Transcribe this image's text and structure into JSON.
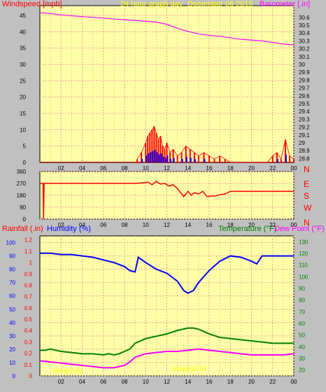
{
  "header": {
    "title": "24 hour graph day",
    "date": "December 06 2015",
    "left_label": "Windspeed [mph]",
    "right_label": "Barometer [.in]"
  },
  "colors": {
    "background": "#c0c0c0",
    "plot_bg": "#ffffa8",
    "grid": "#f0a0a0",
    "wind": "#ff0000",
    "gust_fill": "#0000ff",
    "green_fill": "#008000",
    "barometer": "#ff00ff",
    "direction": "#ff0000",
    "humidity": "#0000ff",
    "temperature": "#008000",
    "dew_point": "#ff00ff",
    "rain_axis": "#ff0000",
    "yellow_text": "#ffff00"
  },
  "chart_data": [
    {
      "type": "line",
      "id": "wind_barometer",
      "title": "24 hour graph day   December 06 2015",
      "ylabel_left": "Windspeed [mph]",
      "ylabel_right": "Barometer [.in]",
      "x_ticks": [
        "02",
        "04",
        "06",
        "08",
        "10",
        "12",
        "14",
        "16",
        "18",
        "20",
        "22",
        "00"
      ],
      "y_left_ticks": [
        "0",
        "5",
        "10",
        "15",
        "20",
        "25",
        "30",
        "35",
        "40",
        "45"
      ],
      "y_right_ticks": [
        "28.8",
        "28.9",
        "29",
        "29.1",
        "29.2",
        "29.3",
        "29.4",
        "29.5",
        "29.6",
        "29.7",
        "29.8",
        "29.9",
        "30",
        "30.1",
        "30.2",
        "30.3",
        "30.4",
        "30.5",
        "30.6"
      ],
      "xlim": [
        0,
        24
      ],
      "ylim_left": [
        0,
        48
      ],
      "ylim_right": [
        28.75,
        30.75
      ],
      "grid": true,
      "series": [
        {
          "name": "Barometer",
          "axis": "right",
          "x": [
            0,
            1,
            2,
            3,
            4,
            5,
            6,
            7,
            8,
            9,
            10,
            11,
            12,
            13,
            14,
            15,
            16,
            17,
            18,
            19,
            20,
            21,
            22,
            23,
            24
          ],
          "y": [
            30.66,
            30.65,
            30.63,
            30.62,
            30.61,
            30.6,
            30.59,
            30.58,
            30.57,
            30.56,
            30.55,
            30.54,
            30.51,
            30.46,
            30.42,
            30.39,
            30.37,
            30.36,
            30.34,
            30.32,
            30.31,
            30.3,
            30.28,
            30.26,
            30.25
          ]
        },
        {
          "name": "Wind",
          "axis": "left",
          "x": [
            9.2,
            9.6,
            10.0,
            10.2,
            10.4,
            10.6,
            10.8,
            11.0,
            11.2,
            11.4,
            11.6,
            11.8,
            12.0,
            12.3,
            12.6,
            13.0,
            13.4,
            13.8,
            14.2,
            14.6,
            15.0,
            15.5,
            16.0,
            16.5,
            17.0,
            17.5,
            18.0,
            21.5,
            22.0,
            22.4,
            22.8,
            23.2,
            23.6,
            24.0
          ],
          "y": [
            1,
            3,
            6,
            8,
            9,
            10,
            11,
            9,
            7,
            8,
            5,
            4,
            6,
            3,
            4,
            2,
            3,
            5,
            4,
            3,
            2,
            3,
            2,
            1,
            2,
            1,
            0,
            0,
            2,
            3,
            1,
            7,
            2,
            1
          ]
        }
      ]
    },
    {
      "type": "line",
      "id": "direction",
      "y_left_ticks": [
        "0",
        "90",
        "180",
        "270",
        "360"
      ],
      "y_right_ticks": [
        "N",
        "W",
        "S",
        "E",
        "N"
      ],
      "ylim": [
        0,
        360
      ],
      "xlim": [
        0,
        24
      ],
      "x_ticks": [
        "02",
        "04",
        "06",
        "08",
        "10",
        "12",
        "14",
        "16",
        "18",
        "20",
        "22",
        "00"
      ],
      "grid": true,
      "series": [
        {
          "name": "Wind direction",
          "x": [
            0,
            0.3,
            0.35,
            0.4,
            0.45,
            1,
            5,
            9,
            9.8,
            10.2,
            10.6,
            11.0,
            11.4,
            11.8,
            12.2,
            12.6,
            13.0,
            13.3,
            13.6,
            14.0,
            14.3,
            14.6,
            15.0,
            15.4,
            15.8,
            16.2,
            16.6,
            17.0,
            17.5,
            18,
            20,
            22,
            24
          ],
          "y": [
            270,
            270,
            0,
            270,
            270,
            270,
            270,
            270,
            275,
            280,
            260,
            285,
            265,
            270,
            250,
            260,
            230,
            200,
            170,
            210,
            180,
            200,
            190,
            210,
            170,
            175,
            175,
            185,
            190,
            210,
            210,
            210,
            210
          ]
        }
      ]
    },
    {
      "type": "line",
      "id": "humidity_temperature",
      "ylabel_left_1": "Rainfall (.in)",
      "ylabel_left_2": "Humidity (%)",
      "ylabel_right_1": "Temperature (°F)",
      "ylabel_right_2": "Dew Point (°F)",
      "x_ticks": [
        "02",
        "04",
        "06",
        "08",
        "10",
        "12",
        "14",
        "16",
        "18",
        "20",
        "22",
        "00"
      ],
      "humidity_ticks": [
        "0",
        "10",
        "20",
        "30",
        "40",
        "50",
        "60",
        "70",
        "80",
        "90",
        "100"
      ],
      "rain_ticks": [
        "0",
        "0.1",
        "0.2",
        "0.3",
        "0.4",
        "0.5",
        "0.6",
        "0.7",
        "0.8",
        "0.9",
        "1",
        "1.1",
        "1.2"
      ],
      "temp_ticks": [
        "20",
        "30",
        "40",
        "50",
        "60",
        "70",
        "80",
        "90",
        "100",
        "110",
        "120",
        "130"
      ],
      "xlim": [
        0,
        24
      ],
      "humidity_lim": [
        0,
        105
      ],
      "temp_lim": [
        15,
        135
      ],
      "grid": true,
      "series": [
        {
          "name": "Humidity",
          "axis": "humidity",
          "x": [
            0,
            1,
            2,
            3,
            4,
            5,
            6,
            7,
            8,
            8.5,
            9,
            9.3,
            10,
            11,
            12,
            13,
            13.6,
            14,
            14.5,
            15,
            16,
            17,
            18,
            19,
            20,
            20.5,
            21,
            22,
            23,
            24
          ],
          "y": [
            92,
            92,
            91,
            91,
            90,
            89,
            87,
            85,
            82,
            79,
            78,
            89,
            85,
            80,
            77,
            71,
            64,
            62,
            64,
            70,
            79,
            86,
            90,
            89,
            86,
            84,
            90,
            90,
            90,
            90
          ]
        },
        {
          "name": "Temperature",
          "axis": "temperature",
          "x": [
            0,
            0.5,
            1,
            1.5,
            2,
            3,
            4,
            5,
            6,
            6.5,
            7,
            7.5,
            8,
            8.5,
            9,
            10,
            11,
            12,
            13,
            14,
            14.5,
            15,
            16,
            17,
            18,
            19,
            20,
            21,
            22,
            23,
            24
          ],
          "y": [
            37,
            37,
            38,
            37,
            36,
            35,
            34,
            34,
            33,
            34,
            33,
            34,
            36,
            38,
            43,
            47,
            49,
            51,
            54,
            56,
            56,
            55,
            51,
            48,
            47,
            46,
            45,
            44,
            43,
            43,
            43
          ]
        },
        {
          "name": "Dew Point",
          "axis": "temperature",
          "x": [
            0,
            1,
            2,
            3,
            4,
            5,
            6,
            7,
            8,
            8.5,
            9,
            10,
            11,
            12,
            13,
            14,
            15,
            16,
            17,
            18,
            19,
            20,
            21,
            22,
            23,
            24
          ],
          "y": [
            28,
            27,
            26,
            25,
            24,
            23,
            22,
            22,
            24,
            27,
            31,
            34,
            35,
            36,
            36,
            37,
            38,
            37,
            36,
            35,
            34,
            33,
            33,
            33,
            33,
            34
          ]
        }
      ],
      "annotations": [
        "Min@7:45",
        "Max@14:52"
      ]
    }
  ]
}
